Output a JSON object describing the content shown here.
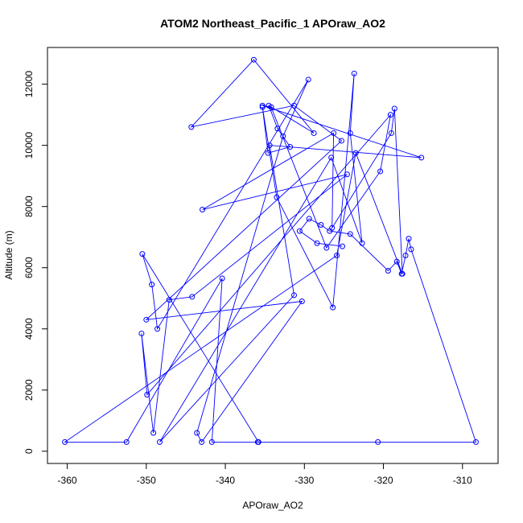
{
  "chart_data": {
    "type": "scatter",
    "mode": "lines+markers",
    "title": "ATOM2 Northeast_Pacific_1 APOraw_AO2",
    "xlabel": "APOraw_AO2",
    "ylabel": "Altitude (m)",
    "xlim": [
      -362.5,
      -305.5
    ],
    "ylim": [
      -400,
      13200
    ],
    "xticks": [
      -360,
      -350,
      -340,
      -330,
      -320,
      -310
    ],
    "yticks": [
      0,
      2000,
      4000,
      6000,
      8000,
      10000,
      12000
    ],
    "grid": false,
    "legend": "none",
    "colors": {
      "series": "#0000ff",
      "axes": "#000000",
      "background": "#ffffff"
    },
    "series": [
      {
        "x": [
          -335.8,
          -350.5,
          -349.3,
          -348.6,
          -329.5,
          -332.7,
          -343.6,
          -343.0,
          -330.3,
          -350.0,
          -325.3,
          -331.3,
          -344.3,
          -336.4,
          -328.8,
          -334.5,
          -333.4,
          -331.8,
          -334.6,
          -335.3,
          -333.5,
          -326.4,
          -323.7,
          -324.2,
          -322.7,
          -326.6,
          -348.3,
          -331.3,
          -334.4,
          -315.2,
          -335.3,
          -334.2,
          -327.2,
          -320.4,
          -319.1,
          -349.9,
          -350.6,
          -349.1,
          -347.1,
          -344.2,
          -324.6,
          -342.9,
          -326.3,
          -326.5,
          -319.0,
          -318.6,
          -317.6,
          -323.5,
          -325.9,
          -360.3,
          -352.5,
          -340.4,
          -341.7,
          -335.9,
          -320.7,
          -308.3,
          -316.5,
          -316.8,
          -317.2,
          -317.7,
          -318.3,
          -319.4,
          -324.2,
          -326.8,
          -327.9,
          -329.4,
          -330.6,
          -328.4,
          -325.2
        ],
        "y": [
          300,
          6450,
          5450,
          4000,
          12150,
          10300,
          600,
          300,
          4900,
          4300,
          10150,
          11300,
          10600,
          12800,
          10400,
          11300,
          10550,
          9950,
          9750,
          11250,
          8300,
          4700,
          12350,
          10400,
          6800,
          9600,
          300,
          5100,
          10000,
          9600,
          11300,
          11250,
          6650,
          9150,
          11000,
          1850,
          3850,
          600,
          4950,
          5050,
          9050,
          7900,
          10400,
          7300,
          10400,
          11200,
          5800,
          9750,
          6400,
          300,
          300,
          5650,
          300,
          300,
          300,
          300,
          6600,
          6950,
          6400,
          5800,
          6200,
          5900,
          7100,
          7200,
          7400,
          7600,
          7200,
          6800,
          6700
        ]
      }
    ]
  }
}
